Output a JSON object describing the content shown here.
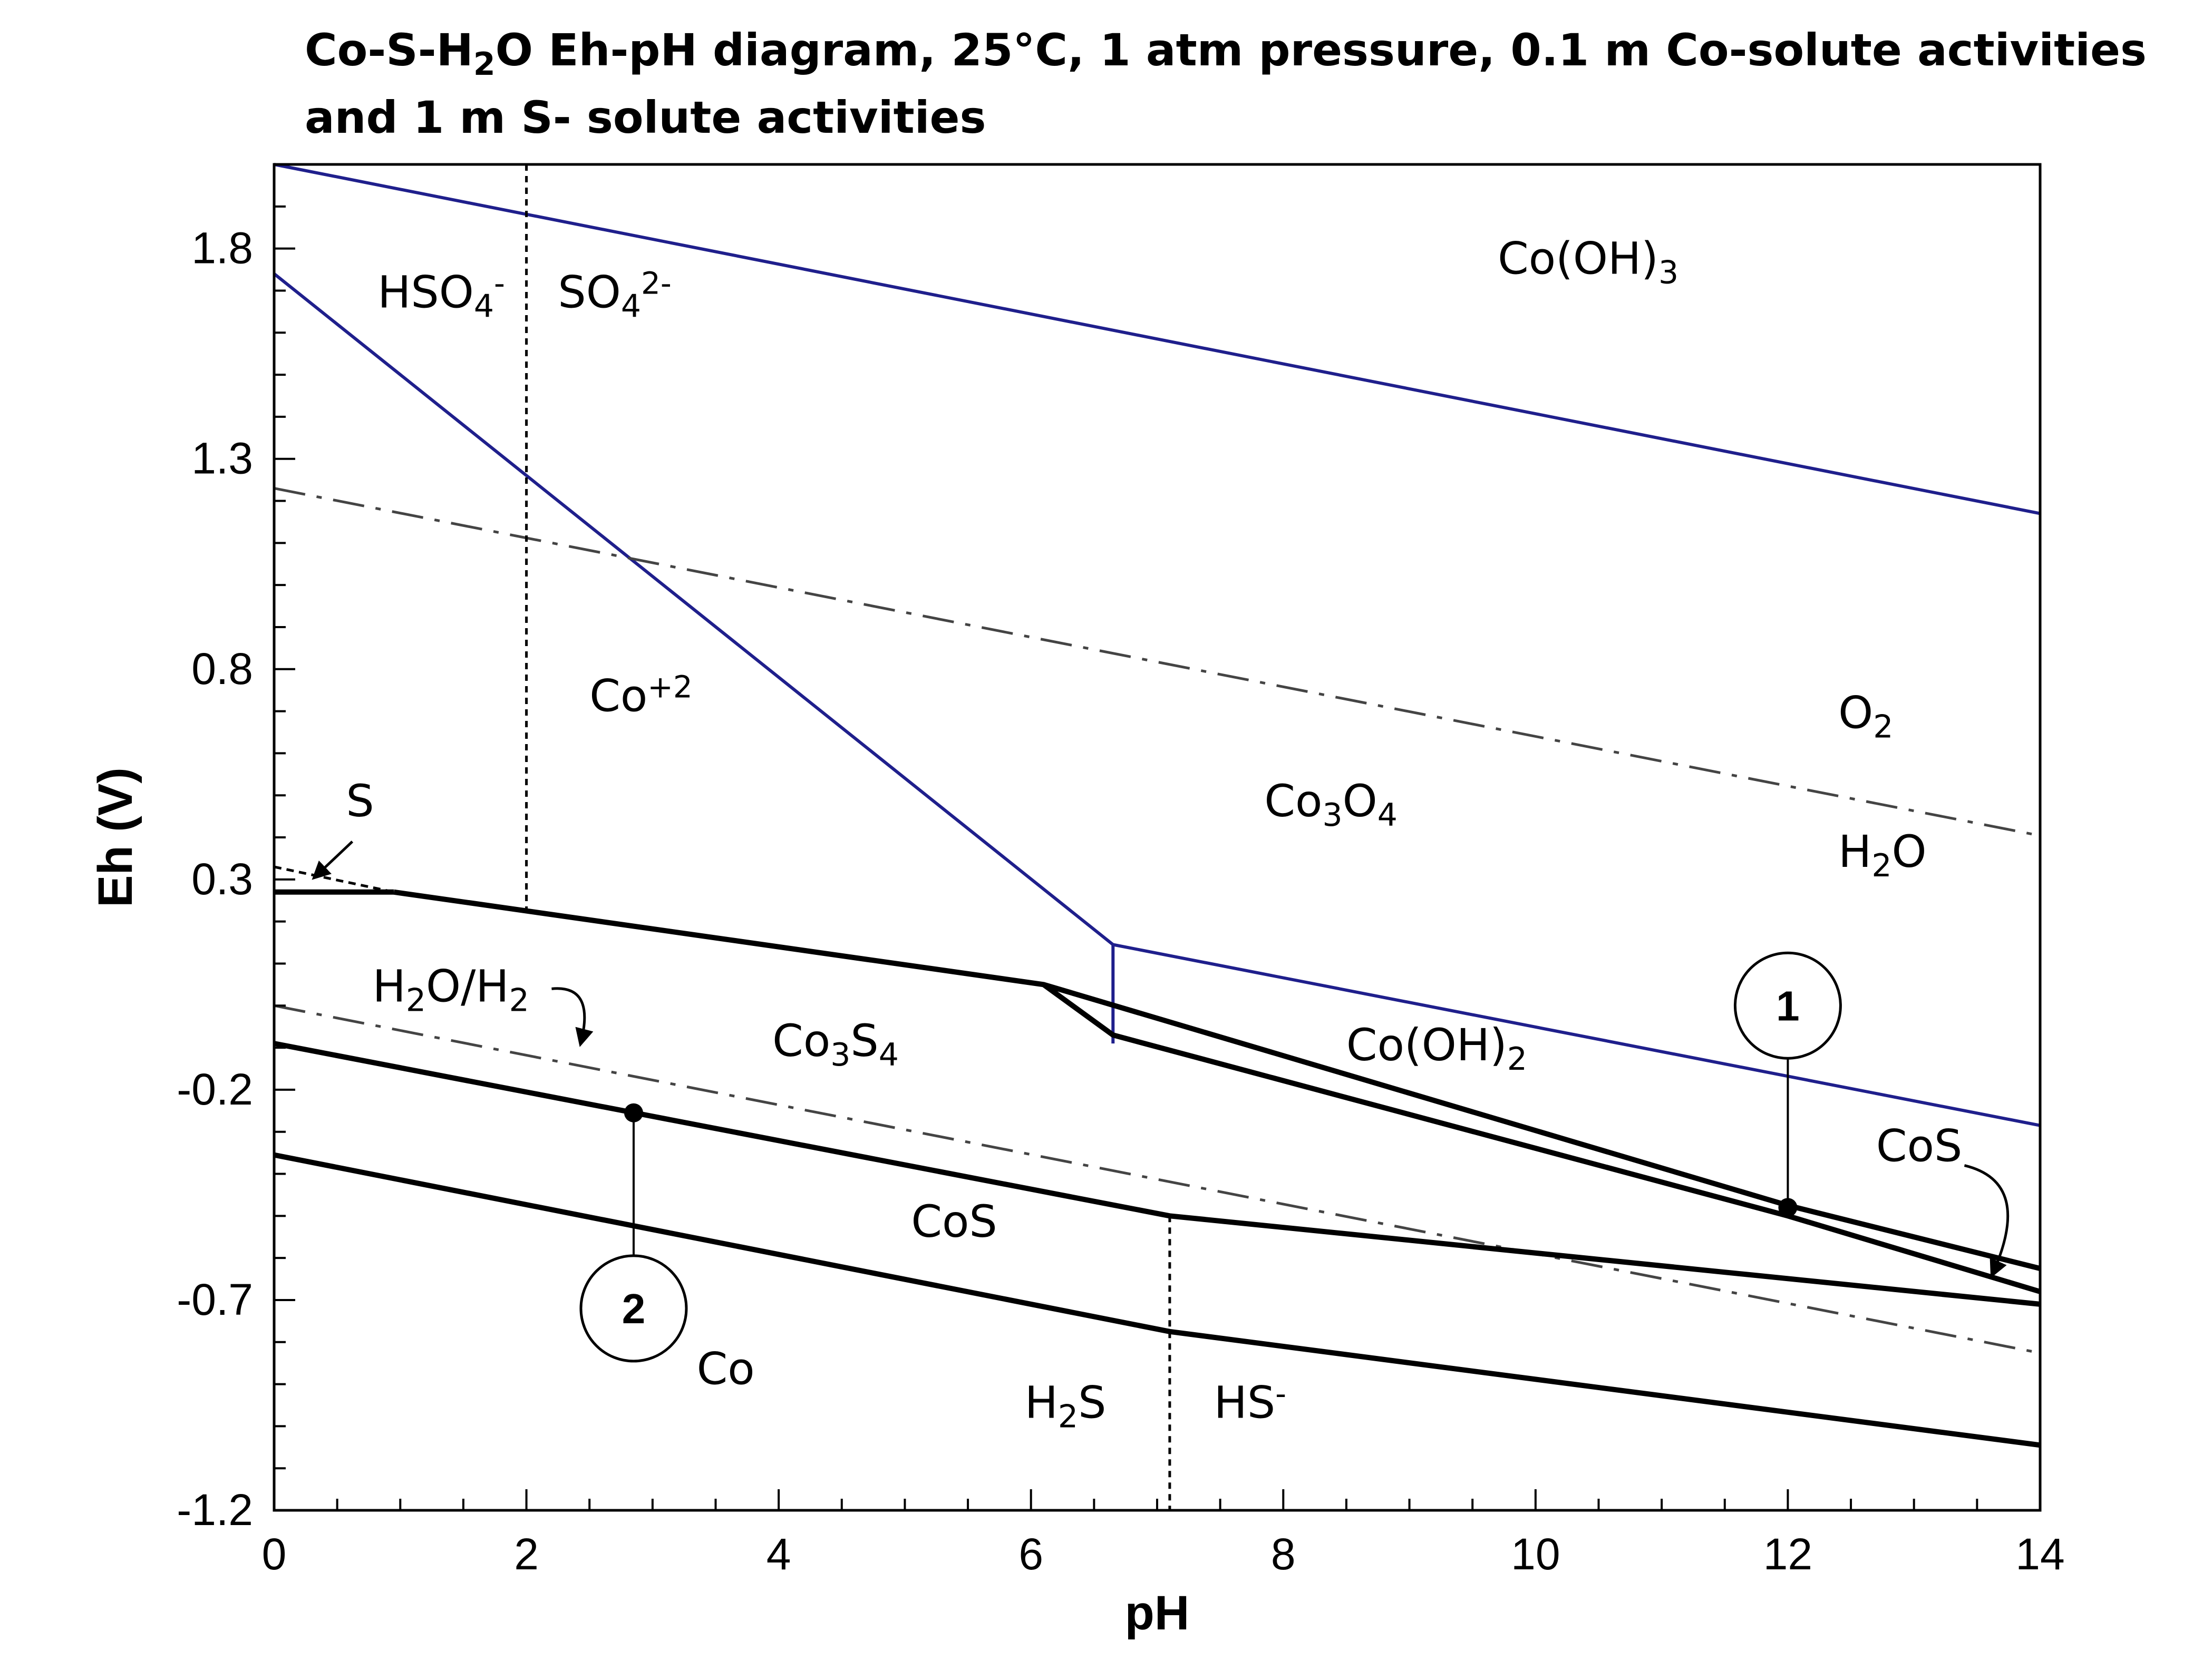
{
  "chart_data": {
    "type": "line",
    "title_line1": "Co-S-H₂O Eh-pH diagram, 25°C, 1 atm pressure, 0.1 m Co-solute activities",
    "title_line2": "and 1 m S- solute activities",
    "xlabel": "pH",
    "ylabel": "Eh (V)",
    "xlim": [
      0,
      14
    ],
    "ylim": [
      -1.2,
      2.0
    ],
    "x_ticks": [
      "0",
      "2",
      "4",
      "6",
      "8",
      "10",
      "12",
      "14"
    ],
    "y_ticks": [
      "1.8",
      "1.3",
      "0.8",
      "0.3",
      "-0.2",
      "-0.7",
      "-1.2"
    ],
    "colors": {
      "cobalt_boundary": "#1f1f8c",
      "sulfur_boundary": "#000000",
      "water_line": "#444444"
    },
    "series": [
      {
        "name": "Co(OH)3 upper boundary",
        "style": "blue",
        "x": [
          0,
          14
        ],
        "y": [
          2.0,
          1.17
        ]
      },
      {
        "name": "Co+2 / Co3O4",
        "style": "blue",
        "x": [
          0,
          6.65
        ],
        "y": [
          1.74,
          0.145
        ]
      },
      {
        "name": "Co3O4 vertical",
        "style": "blue",
        "x": [
          6.65,
          6.65
        ],
        "y": [
          0.145,
          -0.09
        ]
      },
      {
        "name": "Co3O4 / Co(OH)2",
        "style": "blue",
        "x": [
          6.65,
          14
        ],
        "y": [
          0.145,
          -0.285
        ]
      },
      {
        "name": "O2/H2O",
        "style": "dashdot",
        "x": [
          0,
          14
        ],
        "y": [
          1.23,
          0.404
        ]
      },
      {
        "name": "H2O/H2",
        "style": "dashdot",
        "x": [
          0,
          14
        ],
        "y": [
          0.0,
          -0.826
        ]
      },
      {
        "name": "S boundary",
        "style": "dashed",
        "x": [
          0,
          0.95
        ],
        "y": [
          0.33,
          0.27
        ]
      },
      {
        "name": "S / Co3S4 (horizontal)",
        "style": "black",
        "x": [
          0,
          0.95
        ],
        "y": [
          0.27,
          0.27
        ]
      },
      {
        "name": "Co3S4 upper boundary",
        "style": "black",
        "x": [
          0.95,
          6.1,
          6.65,
          12,
          14
        ],
        "y": [
          0.27,
          0.05,
          -0.07,
          -0.5,
          -0.68
        ]
      },
      {
        "name": "Co3S4 / Co(OH)2 lower",
        "style": "black",
        "x": [
          6.1,
          12,
          14
        ],
        "y": [
          0.05,
          -0.475,
          -0.625
        ]
      },
      {
        "name": "CoS / Co3S4",
        "style": "black",
        "x": [
          0,
          7.1,
          14
        ],
        "y": [
          -0.09,
          -0.5,
          -0.71
        ]
      },
      {
        "name": "Co / CoS",
        "style": "black",
        "x": [
          0,
          7.1,
          14
        ],
        "y": [
          -0.355,
          -0.775,
          -1.045
        ]
      },
      {
        "name": "HSO4-/SO4 2-",
        "style": "dotted",
        "x": [
          2,
          2
        ],
        "y": [
          2.0,
          0.22
        ]
      },
      {
        "name": "H2S/HS-",
        "style": "dotted",
        "x": [
          7.1,
          7.1
        ],
        "y": [
          -0.5,
          -1.2
        ]
      }
    ],
    "markers": [
      {
        "label": "1",
        "point": [
          12,
          -0.48
        ],
        "circle_center": [
          12,
          0.0
        ]
      },
      {
        "label": "2",
        "point": [
          2.85,
          -0.255
        ],
        "circle_center": [
          2.85,
          -0.72
        ]
      }
    ],
    "regions": [
      {
        "main": "Co(OH)",
        "sub": "3",
        "sup": "",
        "x": 9.7,
        "y": 1.74
      },
      {
        "main": "HSO",
        "sub": "4",
        "sup": "-",
        "x": 0.82,
        "y": 1.66
      },
      {
        "main": "SO",
        "sub": "4",
        "sup": "2-",
        "x": 2.25,
        "y": 1.66
      },
      {
        "main": "Co",
        "sub": "",
        "sup": "+2",
        "x": 2.5,
        "y": 0.7
      },
      {
        "main": "Co",
        "sub": "3",
        "sup": "O4",
        "x": 7.85,
        "y": 0.45
      },
      {
        "main": "O",
        "sub": "2",
        "sup": "",
        "x": 12.4,
        "y": 0.66
      },
      {
        "main": "H",
        "sub": "2",
        "sup": "O",
        "x": 12.4,
        "y": 0.33
      },
      {
        "main": "S",
        "sub": "",
        "sup": "",
        "x": 0.57,
        "y": 0.45
      },
      {
        "main": "H",
        "sub": "2",
        "sup": "O/H2",
        "x": 0.78,
        "y": 0.01
      },
      {
        "main": "Co",
        "sub": "3",
        "sup": "S4",
        "x": 3.95,
        "y": -0.12
      },
      {
        "main": "Co(OH)",
        "sub": "2",
        "sup": "",
        "x": 8.5,
        "y": -0.13
      },
      {
        "main": "CoS",
        "sub": "",
        "sup": "",
        "x": 12.7,
        "y": -0.37
      },
      {
        "main": "CoS",
        "sub": "",
        "sup": "",
        "x": 5.05,
        "y": -0.55
      },
      {
        "main": "Co",
        "sub": "",
        "sup": "",
        "x": 3.35,
        "y": -0.9
      },
      {
        "main": "H",
        "sub": "2",
        "sup": "S",
        "x": 5.95,
        "y": -0.98
      },
      {
        "main": "HS",
        "sub": "",
        "sup": "-",
        "x": 7.45,
        "y": -0.98
      }
    ]
  }
}
